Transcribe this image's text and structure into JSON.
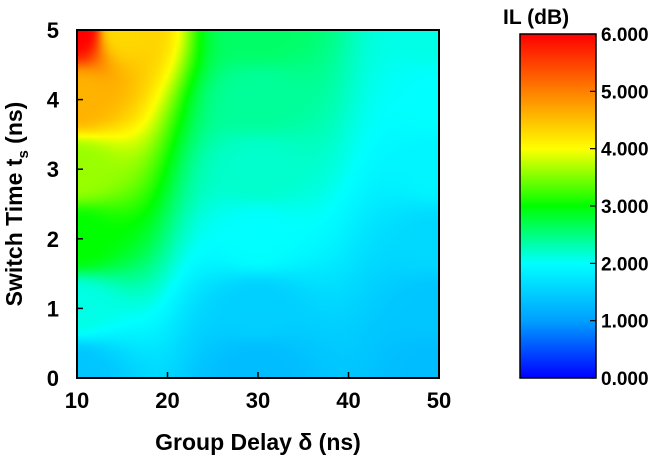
{
  "chart_data": {
    "type": "heatmap",
    "title": "",
    "xlabel": "Group Delay δ (ns)",
    "ylabel": "Switch Time ts (ns)",
    "ylabel_main": "Switch Time t",
    "ylabel_sub": "s",
    "ylabel_unit": " (ns)",
    "xlim": [
      10,
      50
    ],
    "ylim": [
      0,
      5
    ],
    "x_ticks": [
      "10",
      "20",
      "30",
      "40",
      "50"
    ],
    "y_ticks": [
      "0",
      "1",
      "2",
      "3",
      "4",
      "5"
    ],
    "colorbar": {
      "title": "IL (dB)",
      "range": [
        0.0,
        6.0
      ],
      "ticks": [
        "0.000",
        "1.000",
        "2.000",
        "3.000",
        "4.000",
        "5.000",
        "6.000"
      ],
      "colormap": [
        "#0000ff",
        "#00a0ff",
        "#00ffff",
        "#00ff00",
        "#ffff00",
        "#ff8000",
        "#ff0000"
      ]
    },
    "z_samples": [
      {
        "x": 10,
        "y": 0.1,
        "z": 1.4
      },
      {
        "x": 30,
        "y": 0.1,
        "z": 1.3
      },
      {
        "x": 50,
        "y": 0.1,
        "z": 1.3
      },
      {
        "x": 10,
        "y": 1.0,
        "z": 2.1
      },
      {
        "x": 30,
        "y": 1.0,
        "z": 1.5
      },
      {
        "x": 50,
        "y": 1.0,
        "z": 1.4
      },
      {
        "x": 10,
        "y": 2.0,
        "z": 3.0
      },
      {
        "x": 30,
        "y": 2.0,
        "z": 2.0
      },
      {
        "x": 50,
        "y": 2.0,
        "z": 1.6
      },
      {
        "x": 10,
        "y": 3.0,
        "z": 3.6
      },
      {
        "x": 30,
        "y": 3.0,
        "z": 2.2
      },
      {
        "x": 50,
        "y": 3.0,
        "z": 1.9
      },
      {
        "x": 10,
        "y": 4.0,
        "z": 4.6
      },
      {
        "x": 30,
        "y": 4.0,
        "z": 2.4
      },
      {
        "x": 50,
        "y": 4.0,
        "z": 2.0
      },
      {
        "x": 10,
        "y": 5.0,
        "z": 6.0
      },
      {
        "x": 15,
        "y": 5.0,
        "z": 4.3
      },
      {
        "x": 30,
        "y": 5.0,
        "z": 2.6
      },
      {
        "x": 50,
        "y": 5.0,
        "z": 2.1
      }
    ]
  }
}
